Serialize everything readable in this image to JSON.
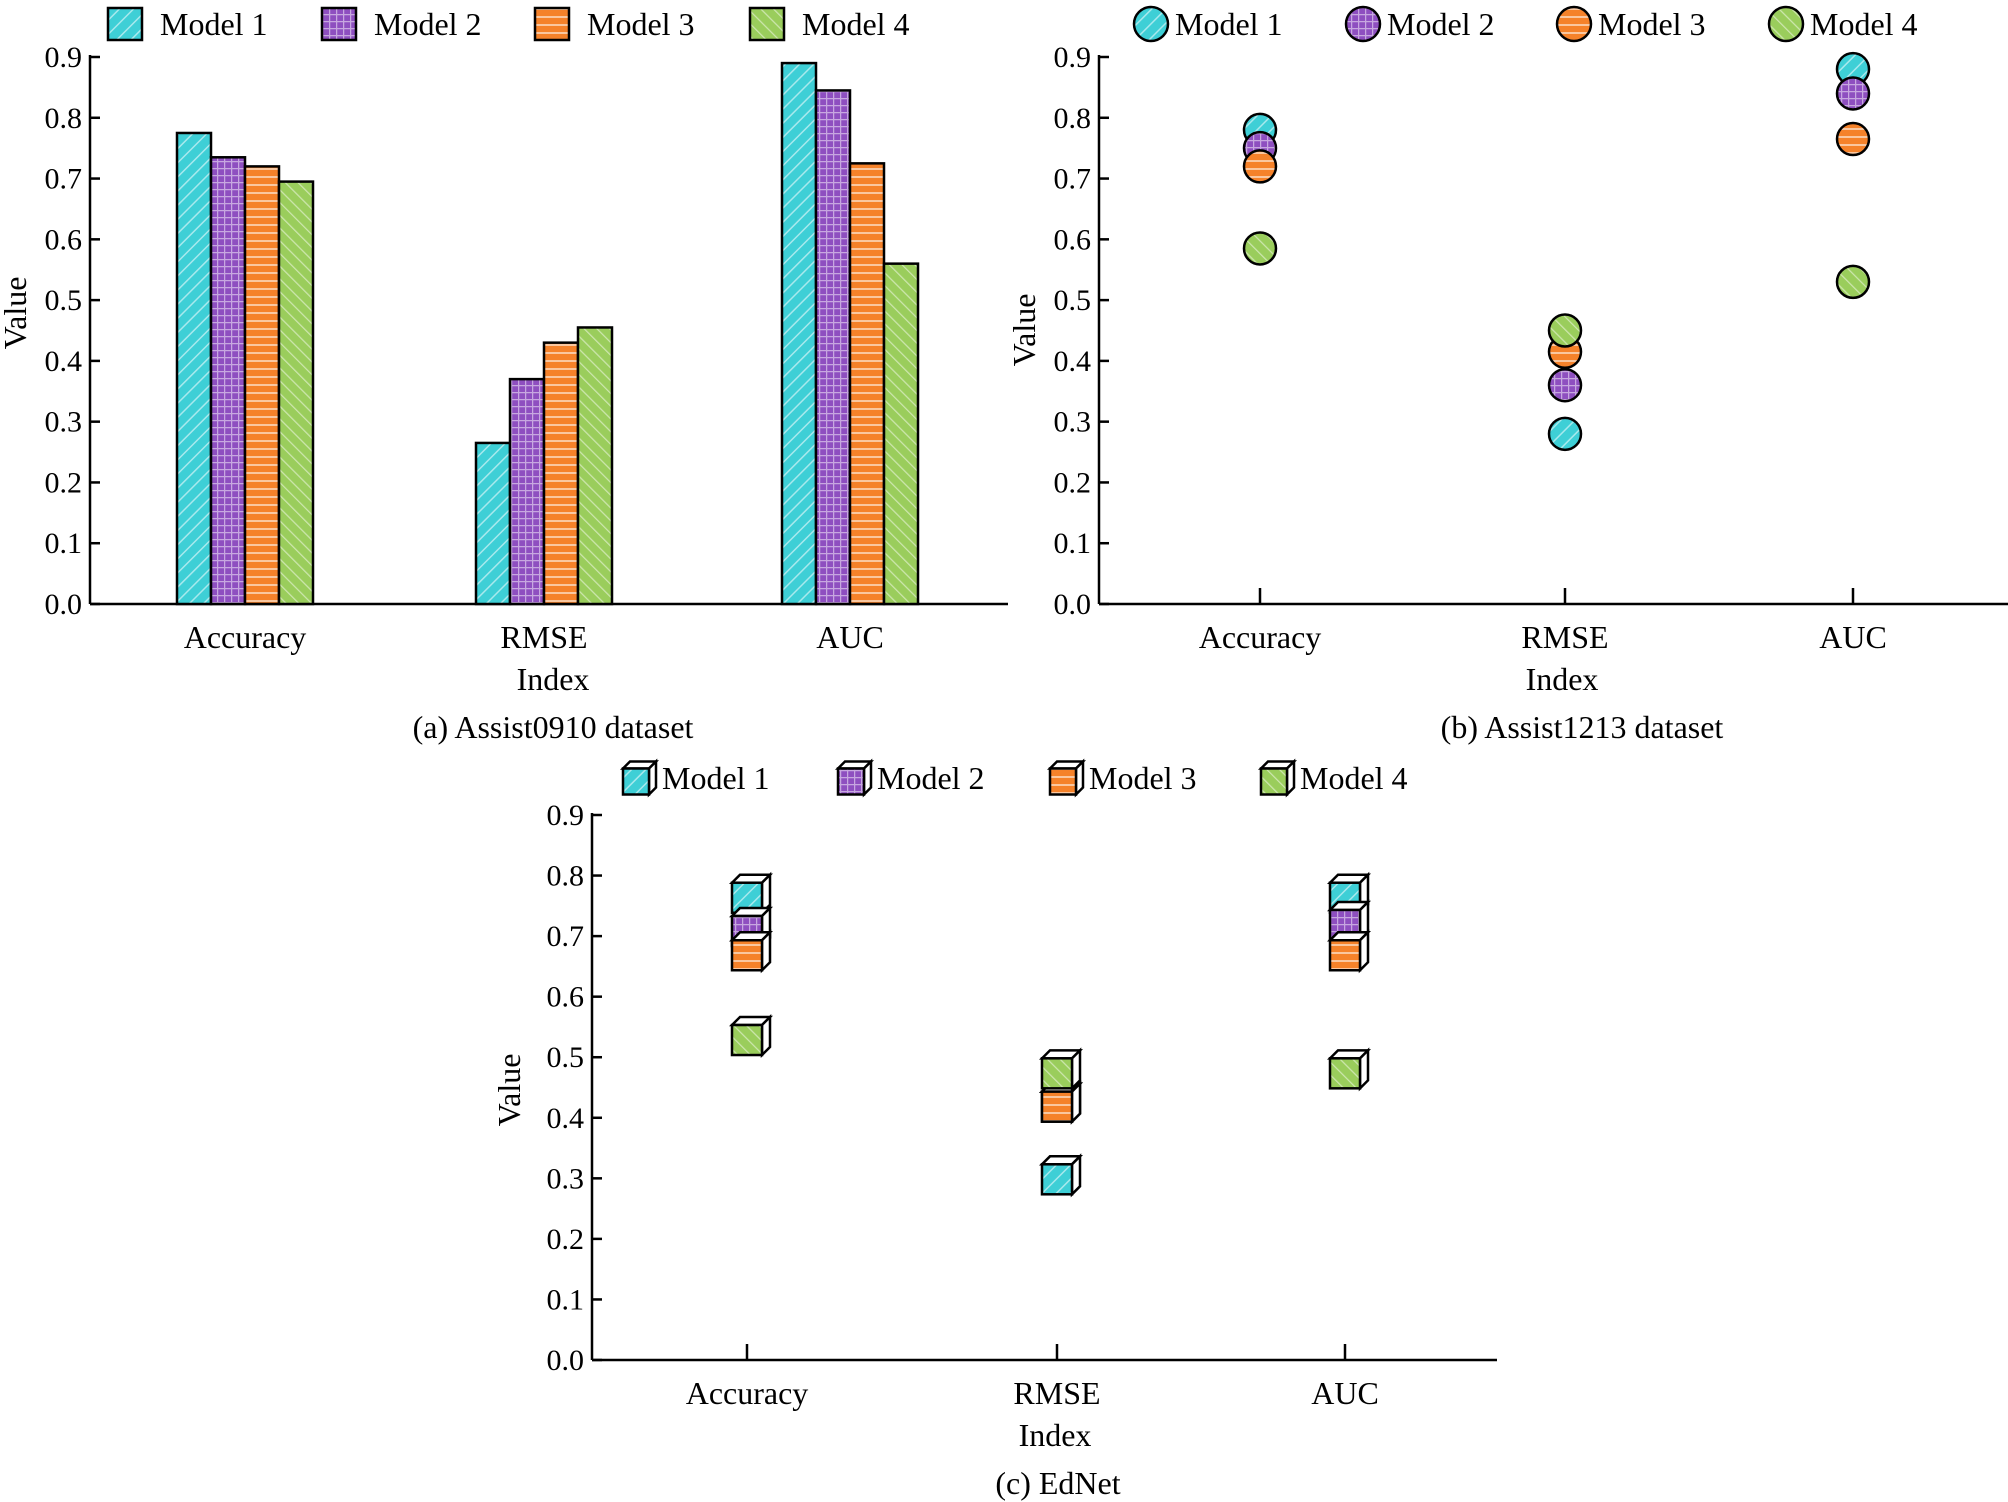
{
  "chart_data": [
    {
      "id": "a",
      "type": "bar",
      "caption": "(a) Assist0910 dataset",
      "xlabel": "Index",
      "ylabel": "Value",
      "ylim": [
        0,
        0.9
      ],
      "yticks": [
        "0.0",
        "0.1",
        "0.2",
        "0.3",
        "0.4",
        "0.5",
        "0.6",
        "0.7",
        "0.8",
        "0.9"
      ],
      "categories": [
        "Accuracy",
        "RMSE",
        "AUC"
      ],
      "legend": "top",
      "series": [
        {
          "name": "Model 1",
          "values": [
            0.775,
            0.265,
            0.89
          ]
        },
        {
          "name": "Model 2",
          "values": [
            0.735,
            0.37,
            0.845
          ]
        },
        {
          "name": "Model 3",
          "values": [
            0.72,
            0.43,
            0.725
          ]
        },
        {
          "name": "Model 4",
          "values": [
            0.695,
            0.455,
            0.56
          ]
        }
      ]
    },
    {
      "id": "b",
      "type": "scatter",
      "marker": "circle",
      "caption": "(b) Assist1213 dataset",
      "xlabel": "Index",
      "ylabel": "Value",
      "ylim": [
        0,
        0.9
      ],
      "yticks": [
        "0.0",
        "0.1",
        "0.2",
        "0.3",
        "0.4",
        "0.5",
        "0.6",
        "0.7",
        "0.8",
        "0.9"
      ],
      "categories": [
        "Accuracy",
        "RMSE",
        "AUC"
      ],
      "legend": "top",
      "series": [
        {
          "name": "Model 1",
          "values": [
            0.78,
            0.28,
            0.88
          ]
        },
        {
          "name": "Model 2",
          "values": [
            0.75,
            0.36,
            0.84
          ]
        },
        {
          "name": "Model 3",
          "values": [
            0.72,
            0.415,
            0.765
          ]
        },
        {
          "name": "Model 4",
          "values": [
            0.585,
            0.45,
            0.53
          ]
        }
      ]
    },
    {
      "id": "c",
      "type": "scatter",
      "marker": "cube",
      "caption": "(c) EdNet",
      "xlabel": "Index",
      "ylabel": "Value",
      "ylim": [
        0,
        0.9
      ],
      "yticks": [
        "0.0",
        "0.1",
        "0.2",
        "0.3",
        "0.4",
        "0.5",
        "0.6",
        "0.7",
        "0.8",
        "0.9"
      ],
      "categories": [
        "Accuracy",
        "RMSE",
        "AUC"
      ],
      "legend": "top",
      "series": [
        {
          "name": "Model 1",
          "values": [
            0.77,
            0.305,
            0.77
          ]
        },
        {
          "name": "Model 2",
          "values": [
            0.715,
            0.425,
            0.725
          ]
        },
        {
          "name": "Model 3",
          "values": [
            0.675,
            0.425,
            0.675
          ]
        },
        {
          "name": "Model 4",
          "values": [
            0.535,
            0.48,
            0.48
          ]
        }
      ]
    }
  ],
  "colors": {
    "Model 1": "#3ECFD6",
    "Model 2": "#8E4FC0",
    "Model 3": "#F5822A",
    "Model 4": "#9ACD5C"
  }
}
